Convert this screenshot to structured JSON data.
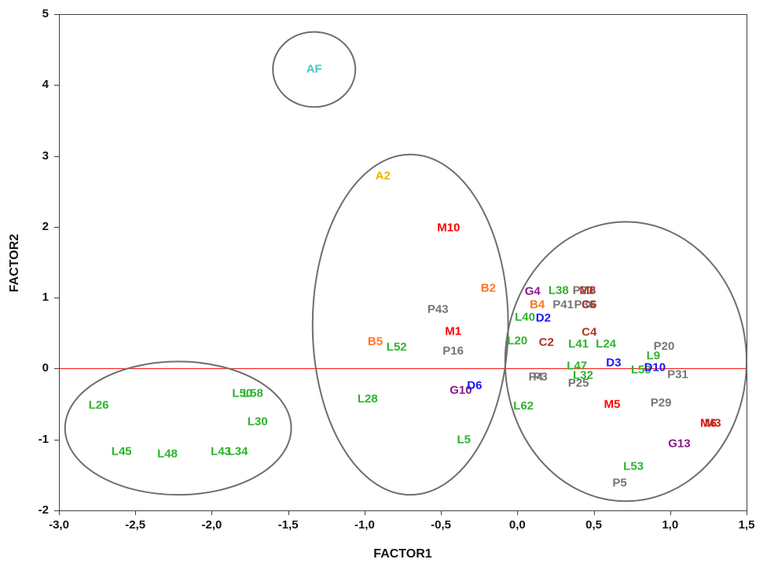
{
  "chart_data": {
    "type": "scatter",
    "title": "",
    "xlabel": "FACTOR1",
    "ylabel": "FACTOR2",
    "xlim": [
      -3.0,
      1.5
    ],
    "ylim": [
      -2,
      5
    ],
    "grid": false,
    "legend": false,
    "zero_line": {
      "y": 0,
      "color": "#ff0000"
    },
    "ellipse_color": "#6e6e6e",
    "axis_color": "#3f3f3f",
    "x_ticks": [
      {
        "v": -3.0,
        "label": "-3,0"
      },
      {
        "v": -2.5,
        "label": "-2,5"
      },
      {
        "v": -2.0,
        "label": "-2,0"
      },
      {
        "v": -1.5,
        "label": "-1,5"
      },
      {
        "v": -1.0,
        "label": "-1,0"
      },
      {
        "v": -0.5,
        "label": "-0,5"
      },
      {
        "v": 0.0,
        "label": "0,0"
      },
      {
        "v": 0.5,
        "label": "0,5"
      },
      {
        "v": 1.0,
        "label": "1,0"
      },
      {
        "v": 1.5,
        "label": "1,5"
      }
    ],
    "y_ticks": [
      {
        "v": -2,
        "label": "-2"
      },
      {
        "v": -1,
        "label": "-1"
      },
      {
        "v": 0,
        "label": "0"
      },
      {
        "v": 1,
        "label": "1"
      },
      {
        "v": 2,
        "label": "2"
      },
      {
        "v": 3,
        "label": "3"
      },
      {
        "v": 4,
        "label": "4"
      },
      {
        "v": 5,
        "label": "5"
      }
    ],
    "palette": {
      "AF": "#3fc8c0",
      "A": "#f0b400",
      "B": "#ff7420",
      "C": "#b03020",
      "D": "#1616ff",
      "G": "#8b1a8b",
      "L": "#2db32d",
      "M": "#ff0000",
      "P": "#757575"
    },
    "points": [
      {
        "label": "AF",
        "x": -1.33,
        "y": 4.22,
        "c": "AF"
      },
      {
        "label": "A2",
        "x": -0.88,
        "y": 2.72,
        "c": "A"
      },
      {
        "label": "M10",
        "x": -0.45,
        "y": 1.99,
        "c": "M"
      },
      {
        "label": "B2",
        "x": -0.19,
        "y": 1.13,
        "c": "B"
      },
      {
        "label": "P43",
        "x": -0.52,
        "y": 0.84,
        "c": "P"
      },
      {
        "label": "M1",
        "x": -0.42,
        "y": 0.53,
        "c": "M"
      },
      {
        "label": "B5",
        "x": -0.93,
        "y": 0.38,
        "c": "B"
      },
      {
        "label": "L52",
        "x": -0.79,
        "y": 0.3,
        "c": "L"
      },
      {
        "label": "P16",
        "x": -0.42,
        "y": 0.25,
        "c": "P"
      },
      {
        "label": "G10",
        "x": -0.37,
        "y": -0.3,
        "c": "G"
      },
      {
        "label": "D6",
        "x": -0.28,
        "y": -0.24,
        "c": "D"
      },
      {
        "label": "L28",
        "x": -0.98,
        "y": -0.43,
        "c": "L"
      },
      {
        "label": "L5",
        "x": -0.35,
        "y": -1.0,
        "c": "L"
      },
      {
        "label": "L26",
        "x": -2.74,
        "y": -0.52,
        "c": "L"
      },
      {
        "label": "L50",
        "x": -1.8,
        "y": -0.35,
        "c": "L"
      },
      {
        "label": "L58",
        "x": -1.73,
        "y": -0.35,
        "c": "L"
      },
      {
        "label": "L30",
        "x": -1.7,
        "y": -0.75,
        "c": "L"
      },
      {
        "label": "L45",
        "x": -2.59,
        "y": -1.17,
        "c": "L"
      },
      {
        "label": "L48",
        "x": -2.29,
        "y": -1.2,
        "c": "L"
      },
      {
        "label": "L43",
        "x": -1.94,
        "y": -1.17,
        "c": "L"
      },
      {
        "label": "L34",
        "x": -1.83,
        "y": -1.17,
        "c": "L"
      },
      {
        "label": "G4",
        "x": 0.1,
        "y": 1.09,
        "c": "G"
      },
      {
        "label": "L38",
        "x": 0.27,
        "y": 1.1,
        "c": "L"
      },
      {
        "label": "P23",
        "x": 0.43,
        "y": 1.1,
        "c": "P"
      },
      {
        "label": "M8",
        "x": 0.46,
        "y": 1.1,
        "c": "C"
      },
      {
        "label": "B4",
        "x": 0.13,
        "y": 0.9,
        "c": "B"
      },
      {
        "label": "P41",
        "x": 0.3,
        "y": 0.9,
        "c": "P"
      },
      {
        "label": "P36",
        "x": 0.44,
        "y": 0.9,
        "c": "P"
      },
      {
        "label": "C6",
        "x": 0.47,
        "y": 0.9,
        "c": "C"
      },
      {
        "label": "L40",
        "x": 0.05,
        "y": 0.72,
        "c": "L"
      },
      {
        "label": "D2",
        "x": 0.17,
        "y": 0.71,
        "c": "D"
      },
      {
        "label": "C4",
        "x": 0.47,
        "y": 0.51,
        "c": "C"
      },
      {
        "label": "L20",
        "x": 0.0,
        "y": 0.39,
        "c": "L"
      },
      {
        "label": "C2",
        "x": 0.19,
        "y": 0.37,
        "c": "C"
      },
      {
        "label": "L41",
        "x": 0.4,
        "y": 0.35,
        "c": "L"
      },
      {
        "label": "L24",
        "x": 0.58,
        "y": 0.35,
        "c": "L"
      },
      {
        "label": "P20",
        "x": 0.96,
        "y": 0.32,
        "c": "P"
      },
      {
        "label": "L9",
        "x": 0.89,
        "y": 0.18,
        "c": "L"
      },
      {
        "label": "L47",
        "x": 0.39,
        "y": 0.04,
        "c": "L"
      },
      {
        "label": "D3",
        "x": 0.63,
        "y": 0.08,
        "c": "D"
      },
      {
        "label": "L59",
        "x": 0.81,
        "y": -0.02,
        "c": "L"
      },
      {
        "label": "D10",
        "x": 0.9,
        "y": 0.02,
        "c": "D"
      },
      {
        "label": "P31",
        "x": 1.05,
        "y": -0.08,
        "c": "P"
      },
      {
        "label": "P4",
        "x": 0.12,
        "y": -0.12,
        "c": "P"
      },
      {
        "label": "P3",
        "x": 0.15,
        "y": -0.12,
        "c": "P"
      },
      {
        "label": "L32",
        "x": 0.43,
        "y": -0.1,
        "c": "L"
      },
      {
        "label": "P25",
        "x": 0.4,
        "y": -0.21,
        "c": "P"
      },
      {
        "label": "L62",
        "x": 0.04,
        "y": -0.53,
        "c": "L"
      },
      {
        "label": "M5",
        "x": 0.62,
        "y": -0.51,
        "c": "M"
      },
      {
        "label": "P29",
        "x": 0.94,
        "y": -0.48,
        "c": "P"
      },
      {
        "label": "M6",
        "x": 1.25,
        "y": -0.77,
        "c": "M"
      },
      {
        "label": "M3",
        "x": 1.28,
        "y": -0.77,
        "c": "C"
      },
      {
        "label": "G13",
        "x": 1.06,
        "y": -1.06,
        "c": "G"
      },
      {
        "label": "L53",
        "x": 0.76,
        "y": -1.38,
        "c": "L"
      },
      {
        "label": "P5",
        "x": 0.67,
        "y": -1.61,
        "c": "P"
      }
    ],
    "ellipses": [
      {
        "cx": -1.33,
        "cy": 4.22,
        "rx": 0.27,
        "ry": 0.53
      },
      {
        "cx": -2.22,
        "cy": -0.84,
        "rx": 0.74,
        "ry": 0.94
      },
      {
        "cx": -0.7,
        "cy": 0.62,
        "rx": 0.64,
        "ry": 2.4
      },
      {
        "cx": 0.71,
        "cy": 0.1,
        "rx": 0.79,
        "ry": 1.97
      }
    ]
  }
}
